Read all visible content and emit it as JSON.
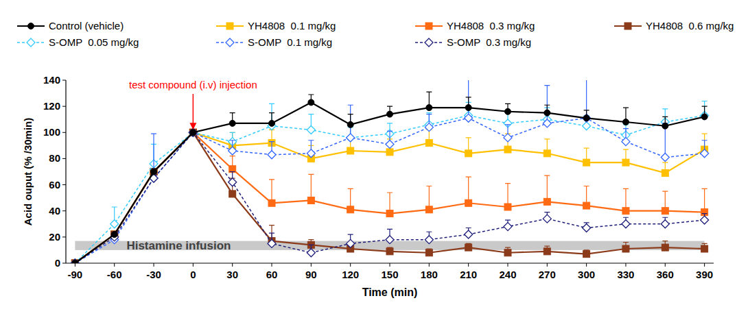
{
  "chart_data": {
    "type": "line",
    "x_label": "Time (min)",
    "y_label": "Acid ouput (% /30min)",
    "x": [
      -90,
      -60,
      -30,
      0,
      30,
      60,
      90,
      120,
      150,
      180,
      210,
      240,
      270,
      300,
      330,
      360,
      390
    ],
    "xlim": [
      -97,
      397
    ],
    "xticks": [
      -90,
      -60,
      -30,
      0,
      30,
      60,
      90,
      120,
      150,
      180,
      210,
      240,
      270,
      300,
      330,
      360,
      390
    ],
    "ylim": [
      0,
      140
    ],
    "yticks": [
      0,
      20,
      40,
      60,
      80,
      100,
      120,
      140
    ],
    "grid": false,
    "legend": "top",
    "annotations": [
      {
        "type": "arrow",
        "label": "test compound (i.v) injection",
        "x": 0,
        "color": "#ff0000"
      },
      {
        "type": "band",
        "label": "Histamine infusion",
        "x": [
          -90,
          390
        ],
        "y": [
          10,
          17
        ],
        "color": "#c0c0c0"
      }
    ],
    "series": [
      {
        "name": "YH4808  0.1 mg/kg",
        "color": "#ffc000",
        "marker": "square",
        "line_style": "solid",
        "values": [
          0,
          22,
          70,
          100,
          90,
          92,
          80,
          86,
          85,
          92,
          84,
          87,
          84,
          77,
          77,
          69,
          87
        ],
        "errors": [
          null,
          null,
          null,
          null,
          10,
          10,
          10,
          10,
          10,
          10,
          12,
          12,
          11,
          11,
          10,
          8,
          12
        ]
      },
      {
        "name": "YH4808  0.3 mg/kg",
        "color": "#ff6a13",
        "marker": "square",
        "line_style": "solid",
        "values": [
          0,
          22,
          70,
          100,
          72,
          46,
          48,
          41,
          38,
          41,
          46,
          43,
          47,
          44,
          40,
          40,
          39
        ],
        "errors": [
          null,
          null,
          null,
          null,
          10,
          18,
          20,
          16,
          16,
          18,
          20,
          18,
          20,
          15,
          17,
          15,
          18
        ]
      },
      {
        "name": "YH4808  0.6 mg/kg",
        "color": "#8b3a1a",
        "marker": "square",
        "line_style": "solid",
        "values": [
          0,
          22,
          70,
          100,
          53,
          17,
          14,
          11,
          9,
          8,
          12,
          8,
          9,
          7,
          11,
          12,
          11
        ],
        "errors": [
          null,
          null,
          null,
          null,
          12,
          12,
          4,
          3,
          3,
          3,
          3,
          4,
          4,
          3,
          5,
          5,
          4
        ]
      },
      {
        "name": "S-OMP  0.05 mg/kg",
        "color": "#33ccff",
        "marker": "diamond",
        "line_style": "dashed",
        "values": [
          0,
          30,
          76,
          100,
          93,
          105,
          102,
          96,
          99,
          106,
          113,
          107,
          110,
          105,
          98,
          108,
          113
        ],
        "errors": [
          null,
          13,
          15,
          null,
          7,
          17,
          12,
          8,
          8,
          9,
          10,
          8,
          9,
          8,
          8,
          10,
          11
        ]
      },
      {
        "name": "S-OMP  0.1 mg/kg",
        "color": "#3366ff",
        "marker": "diamond",
        "line_style": "dashed",
        "values": [
          0,
          18,
          65,
          100,
          86,
          83,
          84,
          96,
          91,
          104,
          111,
          96,
          107,
          111,
          93,
          81,
          84
        ],
        "errors": [
          null,
          5,
          34,
          null,
          8,
          10,
          10,
          25,
          10,
          10,
          36,
          10,
          29,
          31,
          10,
          26,
          10
        ]
      },
      {
        "name": "S-OMP  0.3 mg/kg",
        "color": "#1f1f7a",
        "marker": "diamond",
        "line_style": "dashed",
        "values": [
          0,
          20,
          65,
          100,
          62,
          15,
          8,
          15,
          18,
          18,
          22,
          28,
          34,
          27,
          30,
          30,
          33
        ],
        "errors": [
          null,
          null,
          null,
          null,
          8,
          8,
          6,
          7,
          8,
          6,
          5,
          5,
          5,
          4,
          5,
          5,
          5
        ]
      },
      {
        "name": "Control (vehicle)",
        "color": "#000000",
        "marker": "circle",
        "line_style": "solid",
        "values": [
          0,
          22,
          70,
          100,
          107,
          107,
          123,
          106,
          114,
          119,
          119,
          116,
          115,
          111,
          108,
          105,
          112
        ],
        "errors": [
          null,
          null,
          null,
          null,
          8,
          8,
          6,
          8,
          6,
          12,
          8,
          6,
          6,
          6,
          11,
          7,
          8
        ]
      }
    ]
  }
}
